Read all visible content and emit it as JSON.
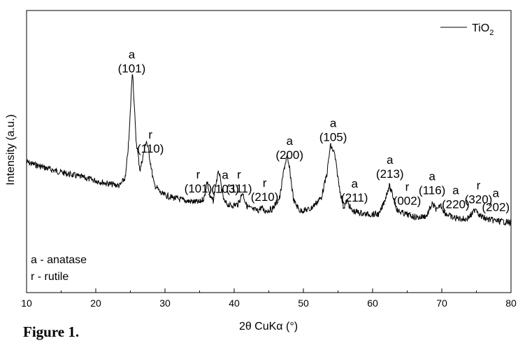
{
  "figure_label": "Figure 1.",
  "chart_data": {
    "type": "line",
    "title": "",
    "xlabel": "2θ CuKα (°)",
    "ylabel": "Intensity (a.u.)",
    "xlim": [
      10,
      80
    ],
    "ylim": [
      0,
      1
    ],
    "x_ticks": [
      10,
      20,
      30,
      40,
      50,
      60,
      70,
      80
    ],
    "grid": false,
    "legend_position": "top-right",
    "series": [
      {
        "name": "TiO2",
        "color": "#000000",
        "x": [
          10,
          12,
          14,
          16,
          18,
          20,
          22,
          23.5,
          24.3,
          24.8,
          25.3,
          25.8,
          26.4,
          27.0,
          27.3,
          27.7,
          28.4,
          29.5,
          31,
          33,
          35,
          35.7,
          36.1,
          36.5,
          37.0,
          37.3,
          37.8,
          38.2,
          38.6,
          39.5,
          40.6,
          41.2,
          41.8,
          42.5,
          43.4,
          43.9,
          44.4,
          45.5,
          46.6,
          47.2,
          47.6,
          48.0,
          48.6,
          49.5,
          51,
          52.6,
          53.4,
          53.9,
          54.5,
          55.2,
          55.8,
          56.3,
          57,
          59,
          61.0,
          61.8,
          62.4,
          63.0,
          63.6,
          64.8,
          66.5,
          67.8,
          68.6,
          69.0,
          69.4,
          69.8,
          70.4,
          71.5,
          73.5,
          74.4,
          74.9,
          75.5,
          76.5,
          78,
          80
        ],
        "y": [
          0.41,
          0.385,
          0.36,
          0.34,
          0.32,
          0.3,
          0.28,
          0.27,
          0.32,
          0.55,
          0.97,
          0.55,
          0.36,
          0.48,
          0.54,
          0.46,
          0.28,
          0.22,
          0.2,
          0.18,
          0.17,
          0.2,
          0.3,
          0.2,
          0.18,
          0.27,
          0.36,
          0.24,
          0.17,
          0.15,
          0.16,
          0.23,
          0.15,
          0.13,
          0.12,
          0.14,
          0.12,
          0.13,
          0.2,
          0.37,
          0.44,
          0.37,
          0.18,
          0.12,
          0.13,
          0.2,
          0.34,
          0.51,
          0.46,
          0.26,
          0.14,
          0.18,
          0.12,
          0.1,
          0.1,
          0.19,
          0.27,
          0.2,
          0.12,
          0.1,
          0.08,
          0.09,
          0.16,
          0.14,
          0.12,
          0.16,
          0.11,
          0.08,
          0.07,
          0.1,
          0.14,
          0.09,
          0.07,
          0.06,
          0.05
        ]
      }
    ],
    "peak_labels": [
      {
        "x": 25.2,
        "phase": "a",
        "hkl": "(101)"
      },
      {
        "x": 27.9,
        "phase": "r",
        "hkl": "(110)"
      },
      {
        "x": 34.8,
        "phase": "r",
        "hkl": "(101)"
      },
      {
        "x": 38.7,
        "phase": "a",
        "hkl": "(103)"
      },
      {
        "x": 40.7,
        "phase": "r",
        "hkl": "(111)"
      },
      {
        "x": 44.4,
        "phase": "r",
        "hkl": "(210)"
      },
      {
        "x": 48.0,
        "phase": "a",
        "hkl": "(200)"
      },
      {
        "x": 54.3,
        "phase": "a",
        "hkl": "(105)"
      },
      {
        "x": 57.4,
        "phase": "a",
        "hkl": "(211)"
      },
      {
        "x": 62.5,
        "phase": "a",
        "hkl": "(213)"
      },
      {
        "x": 65.0,
        "phase": "r",
        "hkl": "(002)"
      },
      {
        "x": 68.6,
        "phase": "a",
        "hkl": "(116)"
      },
      {
        "x": 72.0,
        "phase": "a",
        "hkl": "(220)"
      },
      {
        "x": 75.3,
        "phase": "r",
        "hkl": "(320)"
      },
      {
        "x": 77.8,
        "phase": "a",
        "hkl": "(202)"
      }
    ],
    "notes": [
      "a - anatase",
      "r - rutile"
    ],
    "legend_label": "TiO2"
  }
}
